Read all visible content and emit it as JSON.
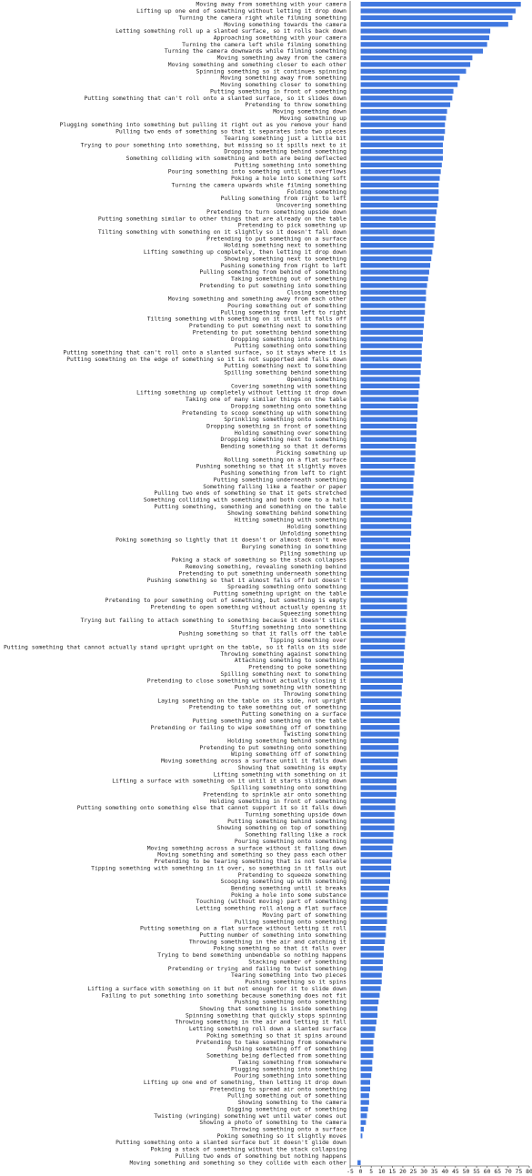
{
  "chart_data": {
    "type": "barh",
    "color": "#3f77e0",
    "categories": [
      "Moving away from something with your camera",
      "Lifting up one end of something without letting it drop down",
      "Turning the camera right while filming something",
      "Moving something towards the camera",
      "Letting something roll up a slanted surface, so it rolls back down",
      "Approaching something with your camera",
      "Turning the camera left while filming something",
      "Turning the camera downwards while filming something",
      "Moving something away from the camera",
      "Moving something and something closer to each other",
      "Spinning something so it continues spinning",
      "Moving something away from something",
      "Moving something closer to something",
      "Putting something in front of something",
      "Putting something that can't roll onto a slanted surface, so it slides down",
      "Pretending to throw something",
      "Moving something down",
      "Moving something up",
      "Plugging something into something but pulling it right out as you remove your hand",
      "Pulling two ends of something so that it separates into two pieces",
      "Tearing something just a little bit",
      "Trying to pour something into something, but missing so it spills next to it",
      "Dropping something behind something",
      "Something colliding with something and both are being deflected",
      "Putting something into something",
      "Pouring something into something until it overflows",
      "Poking a hole into something soft",
      "Turning the camera upwards while filming something",
      "Folding something",
      "Pulling something from right to left",
      "Uncovering something",
      "Pretending to turn something upside down",
      "Putting something similar to other things that are already on the table",
      "Pretending to pick something up",
      "Tilting something with something on it slightly so it doesn't fall down",
      "Pretending to put something on a surface",
      "Holding something next to something",
      "Lifting something up completely, then letting it drop down",
      "Showing something next to something",
      "Pushing something from right to left",
      "Pulling something from behind of something",
      "Taking something out of something",
      "Pretending to put something into something",
      "Closing something",
      "Moving something and something away from each other",
      "Pouring something out of something",
      "Pulling something from left to right",
      "Tilting something with something on it until it falls off",
      "Pretending to put something next to something",
      "Pretending to put something behind something",
      "Dropping something into something",
      "Putting something onto something",
      "Putting something that can't roll onto a slanted surface, so it stays where it is",
      "Putting something on the edge of something so it is not supported and falls down",
      "Putting something next to something",
      "Spilling something behind something",
      "Opening something",
      "Covering something with something",
      "Lifting something up completely without letting it drop down",
      "Taking one of many similar things on the table",
      "Dropping something onto something",
      "Pretending to scoop something up with something",
      "Sprinkling something onto something",
      "Dropping something in front of something",
      "Holding something over something",
      "Dropping something next to something",
      "Bending something so that it deforms",
      "Picking something up",
      "Rolling something on a flat surface",
      "Pushing something so that it slightly moves",
      "Pushing something from left to right",
      "Putting something underneath something",
      "Something falling like a feather or paper",
      "Pulling two ends of something so that it gets stretched",
      "Something colliding with something and both come to a halt",
      "Putting something, something and something on the table",
      "Showing something behind something",
      "Hitting something with something",
      "Holding something",
      "Unfolding something",
      "Poking something so lightly that it doesn't or almost doesn't move",
      "Burying something in something",
      "Piling something up",
      "Poking a stack of something so the stack collapses",
      "Removing something, revealing something behind",
      "Pretending to put something underneath something",
      "Pushing something so that it almost falls off but doesn't",
      "Spreading something onto something",
      "Putting something upright on the table",
      "Pretending to pour something out of something, but something is empty",
      "Pretending to open something without actually opening it",
      "Squeezing something",
      "Trying but failing to attach something to something because it doesn't stick",
      "Stuffing something into something",
      "Pushing something so that it falls off the table",
      "Tipping something over",
      "Putting something that cannot actually stand upright upright on the table, so it falls on its side",
      "Throwing something against something",
      "Attaching something to something",
      "Pretending to poke something",
      "Spilling something next to something",
      "Pretending to close something without actually closing it",
      "Pushing something with something",
      "Throwing something",
      "Laying something on the table on its side, not upright",
      "Pretending to take something out of something",
      "Putting something on a surface",
      "Putting something and something on the table",
      "Pretending or failing to wipe something off of something",
      "Twisting something",
      "Holding something behind something",
      "Pretending to put something onto something",
      "Wiping something off of something",
      "Moving something across a surface until it falls down",
      "Showing that something is empty",
      "Lifting something with something on it",
      "Lifting a surface with something on it until it starts sliding down",
      "Spilling something onto something",
      "Pretending to sprinkle air onto something",
      "Holding something in front of something",
      "Putting something onto something else that cannot support it so it falls down",
      "Turning something upside down",
      "Putting something behind something",
      "Showing something on top of something",
      "Something falling like a rock",
      "Pouring something onto something",
      "Moving something across a surface without it falling down",
      "Moving something and something so they pass each other",
      "Pretending to be tearing something that is not tearable",
      "Tipping something with something in it over, so something in it falls out",
      "Pretending to squeeze something",
      "Scooping something up with something",
      "Bending something until it breaks",
      "Poking a hole into some substance",
      "Touching (without moving) part of something",
      "Letting something roll along a flat surface",
      "Moving part of something",
      "Pulling something onto something",
      "Putting something on a flat surface without letting it roll",
      "Putting number of something into something",
      "Throwing something in the air and catching it",
      "Poking something so that it falls over",
      "Trying to bend something unbendable so nothing happens",
      "Stacking number of something",
      "Pretending or trying and failing to twist something",
      "Tearing something into two pieces",
      "Pushing something so it spins",
      "Lifting a surface with something on it but not enough for it to slide down",
      "Failing to put something into something because something does not fit",
      "Pushing something onto something",
      "Showing that something is inside something",
      "Spinning something that quickly stops spinning",
      "Throwing something in the air and letting it fall",
      "Letting something roll down a slanted surface",
      "Poking something so that it spins around",
      "Pretending to take something from somewhere",
      "Pushing something off of something",
      "Something being deflected from something",
      "Taking something from somewhere",
      "Plugging something into something",
      "Pouring something into something",
      "Lifting up one end of something, then letting it drop down",
      "Pretending to spread air onto something",
      "Pulling something out of something",
      "Showing something to the camera",
      "Digging something out of something",
      "Twisting (wringing) something wet until water comes out",
      "Showing a photo of something to the camera",
      "Throwing something onto a surface",
      "Poking something so it slightly moves",
      "Putting something onto a slanted surface but it doesn't glide down",
      "Poking a stack of something without the stack collapsing",
      "Pulling two ends of something but nothing happens",
      "Moving something and something so they collide with each other"
    ],
    "values": [
      76,
      73.5,
      72,
      70,
      61.5,
      61,
      60,
      58,
      53,
      52,
      50,
      47,
      46,
      44,
      43.5,
      42.5,
      41,
      40.5,
      40,
      40,
      39.5,
      39,
      39,
      39,
      38.5,
      38,
      37.5,
      37,
      37,
      37,
      36.5,
      36,
      35.5,
      35.5,
      35,
      35,
      34.5,
      34,
      33.5,
      33,
      32.5,
      32,
      31.5,
      31,
      31,
      30.5,
      30.5,
      30,
      30,
      29.5,
      29.5,
      29,
      29,
      29,
      28.5,
      28.5,
      28,
      28,
      27.5,
      27.5,
      27,
      27,
      27,
      26.5,
      26.5,
      26.5,
      26,
      26,
      26,
      25.5,
      25.5,
      25,
      25,
      25,
      24.5,
      24.5,
      24.5,
      24,
      24,
      24,
      23.5,
      23.5,
      23.5,
      23,
      23,
      23,
      22.5,
      22.5,
      22.5,
      22,
      22,
      22,
      21.5,
      21.5,
      21.5,
      21,
      21,
      20.5,
      20.5,
      20,
      20,
      20,
      19.5,
      19.5,
      19,
      19,
      19,
      18.5,
      18.5,
      18.5,
      18,
      18,
      18,
      17.5,
      17.5,
      17.5,
      17,
      17,
      17,
      16.5,
      16.5,
      16,
      16,
      16,
      15.5,
      15.5,
      15,
      15,
      14.5,
      14.5,
      14,
      14,
      13.5,
      13,
      13,
      12.5,
      12.5,
      12.5,
      12,
      12,
      11.5,
      11,
      11,
      10.5,
      10.5,
      10,
      10,
      9.5,
      9,
      8.5,
      8,
      8,
      7.5,
      7,
      6.5,
      6,
      6,
      6,
      5.5,
      5.5,
      5,
      4.5,
      4.5,
      4,
      4,
      3.5,
      3,
      2.5,
      1.5,
      0.8,
      0,
      0,
      0,
      -1.5
    ],
    "xlim": [
      -5,
      80
    ],
    "xticks": [
      -5,
      0,
      5,
      10,
      15,
      20,
      25,
      30,
      35,
      40,
      45,
      50,
      55,
      60,
      65,
      70,
      75,
      80
    ]
  }
}
